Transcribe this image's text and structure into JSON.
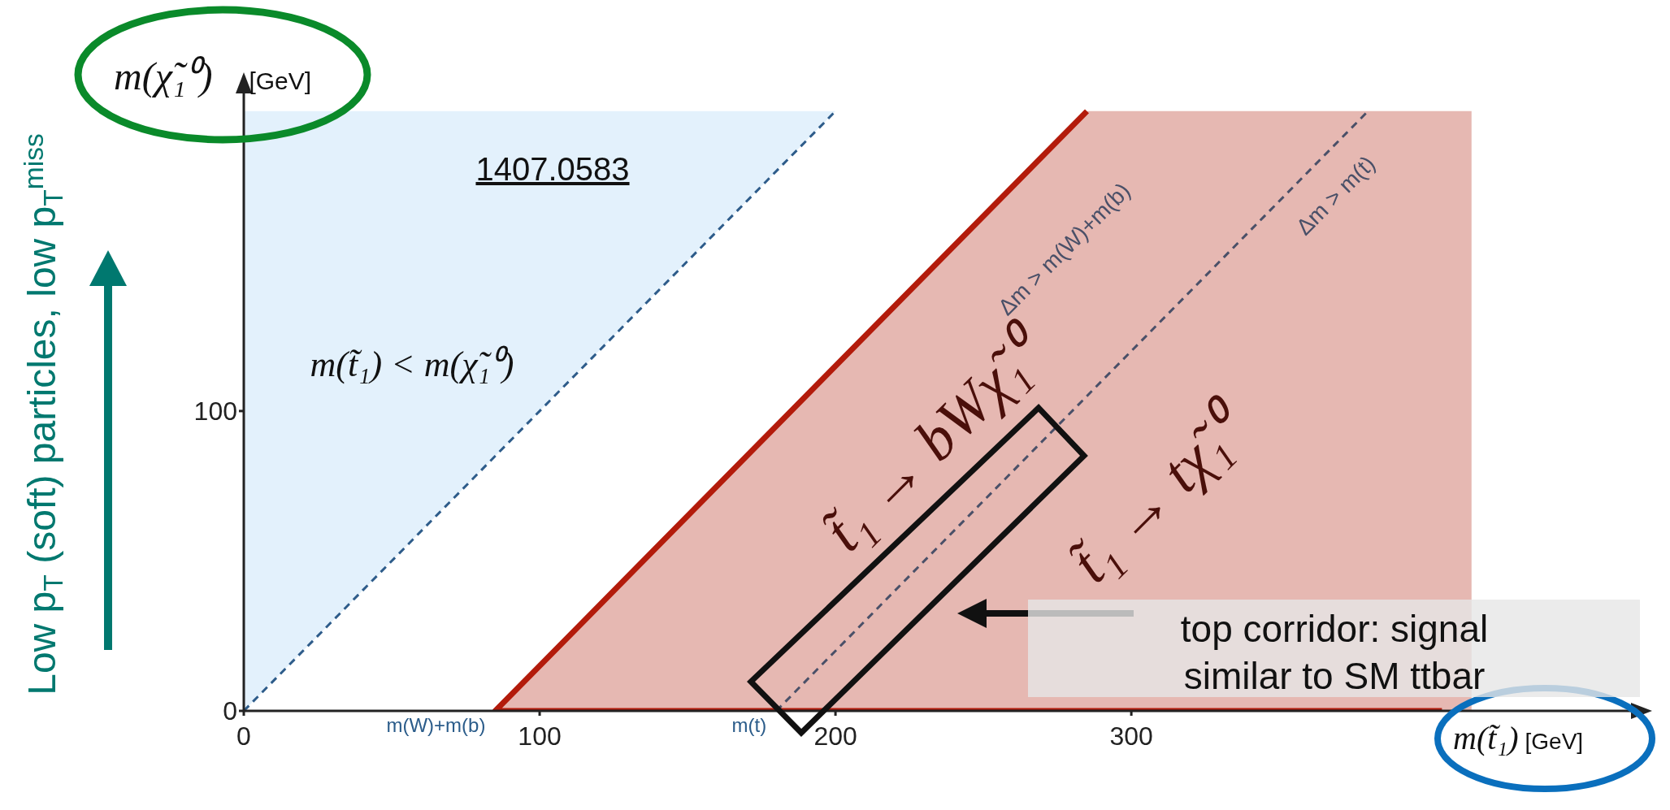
{
  "chart_data": {
    "type": "line",
    "xlabel": "m(t̃₁) [GeV]",
    "ylabel": "m(χ̃₁⁰) [GeV]",
    "xlim": [
      0,
      470
    ],
    "ylim": [
      0,
      207
    ],
    "xticks": [
      0,
      100,
      200,
      300
    ],
    "yticks": [
      0,
      100
    ],
    "grid": false,
    "legend": false,
    "series": [
      {
        "type": "area",
        "color": "#e6b8b2",
        "x": [
          85,
          285,
          415
        ],
        "values": [
          0,
          200,
          200
        ]
      },
      {
        "color": "#2e5c8a",
        "line_style": "dashed",
        "x": [
          0,
          200
        ],
        "values": [
          0,
          200
        ],
        "lower": [
          0,
          200
        ],
        "upper": [
          200,
          200
        ]
      },
      {
        "color": "#4a5068",
        "line_style": "dashed",
        "x": [
          180,
          380
        ],
        "values": [
          0,
          200
        ]
      },
      {
        "color": "#b31b0b",
        "line_style": "solid",
        "x": [
          285,
          85,
          405
        ],
        "values": [
          200,
          0,
          0
        ]
      }
    ],
    "annotations": [
      "1407.0583",
      "m(t̃₁) < m(χ̃₁⁰)",
      "Δm > m(W)+m(b)",
      "Δm > m(t)",
      "t̃₁ → bWχ̃₁⁰",
      "t̃₁ → tχ̃₁⁰",
      "top corridor: signal similar to SM ttbar",
      "Low p$_{T}$ (soft) particles, low p$_{T}$$^{miss}$",
      {
        "text": "m(W)+m(b)",
        "x": 85,
        "y": 0
      },
      {
        "text": "m(t)",
        "x": 180,
        "y": 0
      }
    ]
  }
}
